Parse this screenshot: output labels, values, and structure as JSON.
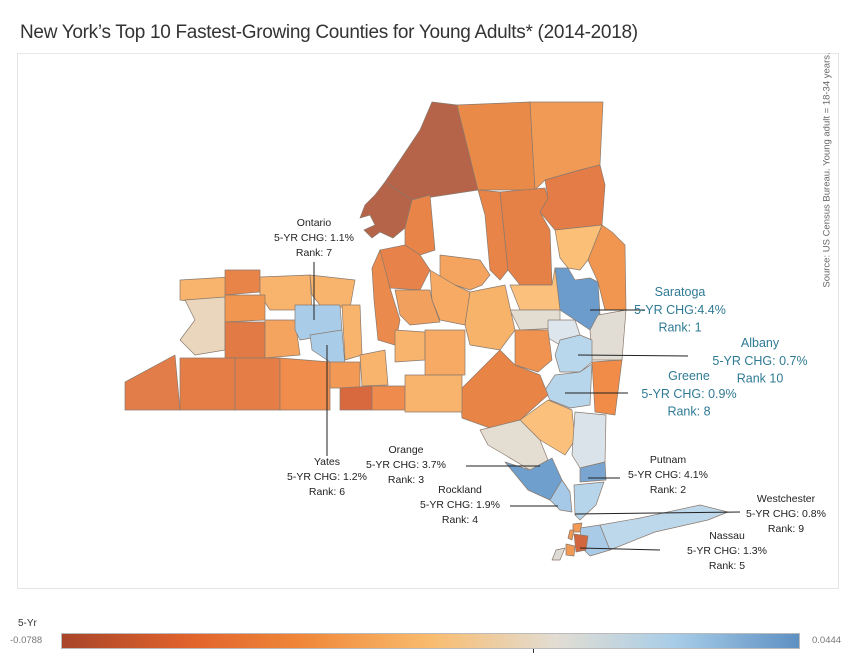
{
  "title": "New York’s Top 10 Fastest-Growing Counties for Young Adults* (2014-2018)",
  "source_note": "Source: US Census Bureau. Young adult = 18-34 years.",
  "legend": {
    "title": "5-Yr",
    "min_label": "-0.0788",
    "max_label": "0.0444",
    "min": -0.0788,
    "max": 0.0444,
    "colors": [
      "#a8452a",
      "#e0622c",
      "#f0883a",
      "#f9bc6e",
      "#e2ddd3",
      "#a8cde8",
      "#5e90c2"
    ]
  },
  "annotations": [
    {
      "county": "Saratoga",
      "name": "Saratoga",
      "change_label": "5-YR CHG:4.4%",
      "rank_label": "Rank: 1",
      "change": 4.4,
      "rank": 1,
      "color": "#2f7a94"
    },
    {
      "county": "Putnam",
      "name": "Putnam",
      "change_label": "5-YR CHG: 4.1%",
      "rank_label": "Rank: 2",
      "change": 4.1,
      "rank": 2,
      "color": "#222222"
    },
    {
      "county": "Orange",
      "name": "Orange",
      "change_label": "5-YR CHG: 3.7%",
      "rank_label": "Rank: 3",
      "change": 3.7,
      "rank": 3,
      "color": "#222222"
    },
    {
      "county": "Rockland",
      "name": "Rockland",
      "change_label": "5-YR CHG: 1.9%",
      "rank_label": "Rank: 4",
      "change": 1.9,
      "rank": 4,
      "color": "#222222"
    },
    {
      "county": "Nassau",
      "name": "Nassau",
      "change_label": "5-YR CHG: 1.3%",
      "rank_label": "Rank: 5",
      "change": 1.3,
      "rank": 5,
      "color": "#222222"
    },
    {
      "county": "Yates",
      "name": "Yates",
      "change_label": "5-YR CHG: 1.2%",
      "rank_label": "Rank: 6",
      "change": 1.2,
      "rank": 6,
      "color": "#222222"
    },
    {
      "county": "Ontario",
      "name": "Ontario",
      "change_label": "5-YR CHG: 1.1%",
      "rank_label": "Rank: 7",
      "change": 1.1,
      "rank": 7,
      "color": "#222222"
    },
    {
      "county": "Greene",
      "name": "Greene",
      "change_label": "5-YR CHG: 0.9%",
      "rank_label": "Rank: 8",
      "change": 0.9,
      "rank": 8,
      "color": "#2f7a94"
    },
    {
      "county": "Westchester",
      "name": "Westchester",
      "change_label": "5-YR CHG: 0.8%",
      "rank_label": "Rank: 9",
      "change": 0.8,
      "rank": 9,
      "color": "#222222"
    },
    {
      "county": "Albany",
      "name": "Albany",
      "change_label": "5-YR CHG: 0.7%",
      "rank_label": "Rank 10",
      "change": 0.7,
      "rank": 10,
      "color": "#2f7a94"
    }
  ],
  "counties": [
    {
      "name": "St. Lawrence",
      "fill": "#b5644a"
    },
    {
      "name": "Jefferson",
      "fill": "#b5644a"
    },
    {
      "name": "Franklin",
      "fill": "#ea8a48"
    },
    {
      "name": "Clinton",
      "fill": "#f09a55"
    },
    {
      "name": "Essex",
      "fill": "#e47c48"
    },
    {
      "name": "Lewis",
      "fill": "#e88448"
    },
    {
      "name": "Hamilton",
      "fill": "#e88448"
    },
    {
      "name": "Herkimer",
      "fill": "#e58046"
    },
    {
      "name": "Oswego",
      "fill": "#e7834a"
    },
    {
      "name": "Warren",
      "fill": "#fbbf77"
    },
    {
      "name": "Washington",
      "fill": "#f19650"
    },
    {
      "name": "Saratoga",
      "fill": "#6c9ccb"
    },
    {
      "name": "Fulton",
      "fill": "#fbc07c"
    },
    {
      "name": "Montgomery",
      "fill": "#e3ddd1"
    },
    {
      "name": "Schenectady",
      "fill": "#dde6ec"
    },
    {
      "name": "Rensselaer",
      "fill": "#e2ddd4"
    },
    {
      "name": "Albany",
      "fill": "#b9d7ec"
    },
    {
      "name": "Greene",
      "fill": "#b7d6ec"
    },
    {
      "name": "Columbia",
      "fill": "#f08c47"
    },
    {
      "name": "Oneida",
      "fill": "#f4a45f"
    },
    {
      "name": "Madison",
      "fill": "#f6aa64"
    },
    {
      "name": "Onondaga",
      "fill": "#f2a05e"
    },
    {
      "name": "Cayuga",
      "fill": "#ea8a4c"
    },
    {
      "name": "Otsego",
      "fill": "#f8b36a"
    },
    {
      "name": "Schoharie",
      "fill": "#f19350"
    },
    {
      "name": "Delaware",
      "fill": "#e78446"
    },
    {
      "name": "Ulster",
      "fill": "#fbc17c"
    },
    {
      "name": "Sullivan",
      "fill": "#e4ddd2"
    },
    {
      "name": "Dutchess",
      "fill": "#dae3ea"
    },
    {
      "name": "Orange",
      "fill": "#6f9fcd"
    },
    {
      "name": "Putnam",
      "fill": "#79a5d0"
    },
    {
      "name": "Rockland",
      "fill": "#a6c9e7"
    },
    {
      "name": "Westchester",
      "fill": "#b6d4ea"
    },
    {
      "name": "Nassau",
      "fill": "#a9cbe7"
    },
    {
      "name": "Suffolk",
      "fill": "#bdd7eb"
    },
    {
      "name": "Bronx",
      "fill": "#f09a55"
    },
    {
      "name": "New York",
      "fill": "#f09a55"
    },
    {
      "name": "Queens",
      "fill": "#d2673f"
    },
    {
      "name": "Kings",
      "fill": "#f09a55"
    },
    {
      "name": "Richmond",
      "fill": "#dedbd5"
    },
    {
      "name": "Niagara",
      "fill": "#f8b36c"
    },
    {
      "name": "Orleans",
      "fill": "#e88448"
    },
    {
      "name": "Monroe",
      "fill": "#f8b36c"
    },
    {
      "name": "Wayne",
      "fill": "#f8b36c"
    },
    {
      "name": "Erie",
      "fill": "#ead6bc"
    },
    {
      "name": "Genesee",
      "fill": "#f19650"
    },
    {
      "name": "Wyoming",
      "fill": "#e27a46"
    },
    {
      "name": "Livingston",
      "fill": "#f4a45f"
    },
    {
      "name": "Ontario",
      "fill": "#a9cde8"
    },
    {
      "name": "Yates",
      "fill": "#a9cde8"
    },
    {
      "name": "Seneca",
      "fill": "#f8b36c"
    },
    {
      "name": "Chautauqua",
      "fill": "#e27c48"
    },
    {
      "name": "Cattaraugus",
      "fill": "#e57e46"
    },
    {
      "name": "Allegany",
      "fill": "#e57e46"
    },
    {
      "name": "Steuben",
      "fill": "#f08d4c"
    },
    {
      "name": "Schuyler",
      "fill": "#f29a55"
    },
    {
      "name": "Chemung",
      "fill": "#d8693f"
    },
    {
      "name": "Tompkins",
      "fill": "#f8b36c"
    },
    {
      "name": "Tioga",
      "fill": "#ef8b4c"
    },
    {
      "name": "Cortland",
      "fill": "#f8b36c"
    },
    {
      "name": "Chenango",
      "fill": "#f6aa64"
    },
    {
      "name": "Broome",
      "fill": "#f8b36c"
    }
  ]
}
